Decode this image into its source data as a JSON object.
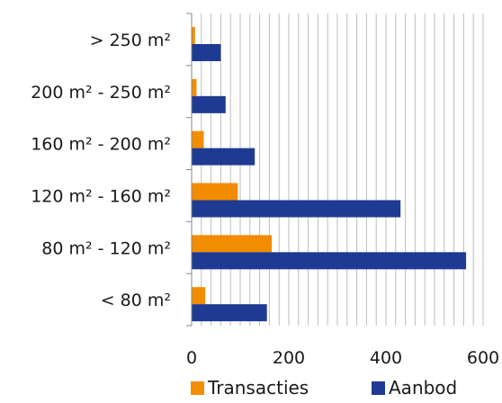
{
  "chart_data": {
    "type": "bar",
    "orientation": "horizontal",
    "categories": [
      "> 250 m²",
      "200 m² - 250 m²",
      "160 m² - 200 m²",
      "120 m² - 160 m²",
      "80 m² - 120 m²",
      "< 80 m²"
    ],
    "series": [
      {
        "name": "Transacties",
        "color": "#f28c00",
        "values": [
          7,
          10,
          25,
          95,
          165,
          28
        ]
      },
      {
        "name": "Aanbod",
        "color": "#1f3a93",
        "values": [
          60,
          70,
          130,
          430,
          565,
          155
        ]
      }
    ],
    "xlim": [
      0,
      600
    ],
    "xticks": [
      "0",
      "200",
      "400",
      "600"
    ],
    "grid": "vertical",
    "legend": "bottom"
  }
}
